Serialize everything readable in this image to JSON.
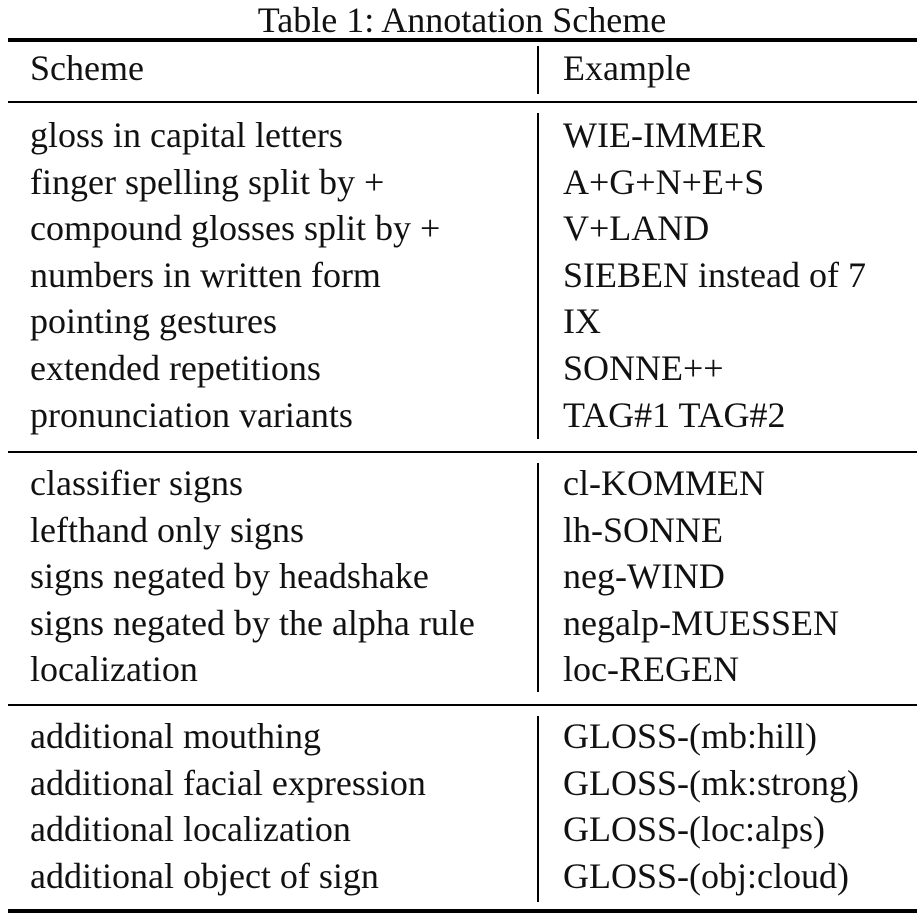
{
  "caption": "Table 1: Annotation Scheme",
  "header": {
    "scheme": "Scheme",
    "example": "Example"
  },
  "groups": [
    {
      "rows": [
        {
          "scheme": "gloss in capital letters",
          "example": "WIE-IMMER"
        },
        {
          "scheme": "finger spelling split by +",
          "example": "A+G+N+E+S"
        },
        {
          "scheme": "compound glosses split by +",
          "example": "V+LAND"
        },
        {
          "scheme": "numbers in written form",
          "example": "SIEBEN instead of 7"
        },
        {
          "scheme": "pointing gestures",
          "example": "IX"
        },
        {
          "scheme": "extended repetitions",
          "example": "SONNE++"
        },
        {
          "scheme": "pronunciation variants",
          "example": "TAG#1 TAG#2"
        }
      ]
    },
    {
      "rows": [
        {
          "scheme": "classifier signs",
          "example": "cl-KOMMEN"
        },
        {
          "scheme": "lefthand only signs",
          "example": "lh-SONNE"
        },
        {
          "scheme": "signs negated by headshake",
          "example": "neg-WIND"
        },
        {
          "scheme": "signs negated by the alpha rule",
          "example": "negalp-MUESSEN"
        },
        {
          "scheme": "localization",
          "example": "loc-REGEN"
        }
      ]
    },
    {
      "rows": [
        {
          "scheme": "additional mouthing",
          "example": "GLOSS-(mb:hill)"
        },
        {
          "scheme": "additional facial expression",
          "example": "GLOSS-(mk:strong)"
        },
        {
          "scheme": "additional localization",
          "example": "GLOSS-(loc:alps)"
        },
        {
          "scheme": "additional object of sign",
          "example": "GLOSS-(obj:cloud)"
        }
      ]
    }
  ]
}
